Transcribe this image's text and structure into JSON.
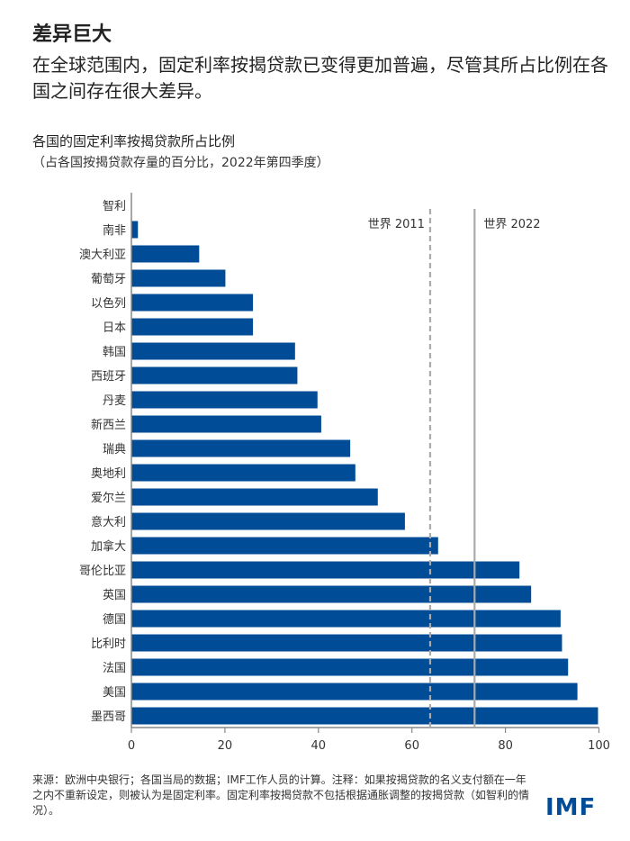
{
  "header": {
    "title": "差异巨大",
    "subtitle": "在全球范围内，固定利率按揭贷款已变得更加普遍，尽管其所占比例在各国之间存在很大差异。"
  },
  "chart_data": {
    "type": "bar",
    "orientation": "horizontal",
    "title": "各国的固定利率按揭贷款所占比例",
    "subtitle": "（占各国按揭贷款存量的百分比，2022年第四季度）",
    "categories": [
      "智利",
      "南非",
      "澳大利亚",
      "葡萄牙",
      "以色列",
      "日本",
      "韩国",
      "西班牙",
      "丹麦",
      "新西兰",
      "瑞典",
      "奥地利",
      "爱尔兰",
      "意大利",
      "加拿大",
      "哥伦比亚",
      "英国",
      "德国",
      "比利时",
      "法国",
      "美国",
      "墨西哥"
    ],
    "values": [
      0,
      1.4,
      14.5,
      20.1,
      26.0,
      26.0,
      35.0,
      35.5,
      39.8,
      40.6,
      46.8,
      47.9,
      52.7,
      58.5,
      65.6,
      83.0,
      85.5,
      91.8,
      92.1,
      93.4,
      95.4,
      99.8
    ],
    "xlim": [
      0,
      100
    ],
    "xticks": [
      "0",
      "20",
      "40",
      "60",
      "80",
      "100"
    ],
    "reference_lines": [
      {
        "label": "世界 2011",
        "value": 63.9,
        "style": "dashed"
      },
      {
        "label": "世界 2022",
        "value": 73.4,
        "style": "solid"
      }
    ],
    "bar_color": "#004C97",
    "grid": false
  },
  "footer": {
    "note": "来源：欧洲中央银行；各国当局的数据；IMF工作人员的计算。注释：如果按揭贷款的名义支付额在一年之内不重新设定，则被认为是固定利率。固定利率按揭贷款不包括根据通胀调整的按揭贷款（如智利的情况）。",
    "logo": "IMF"
  }
}
